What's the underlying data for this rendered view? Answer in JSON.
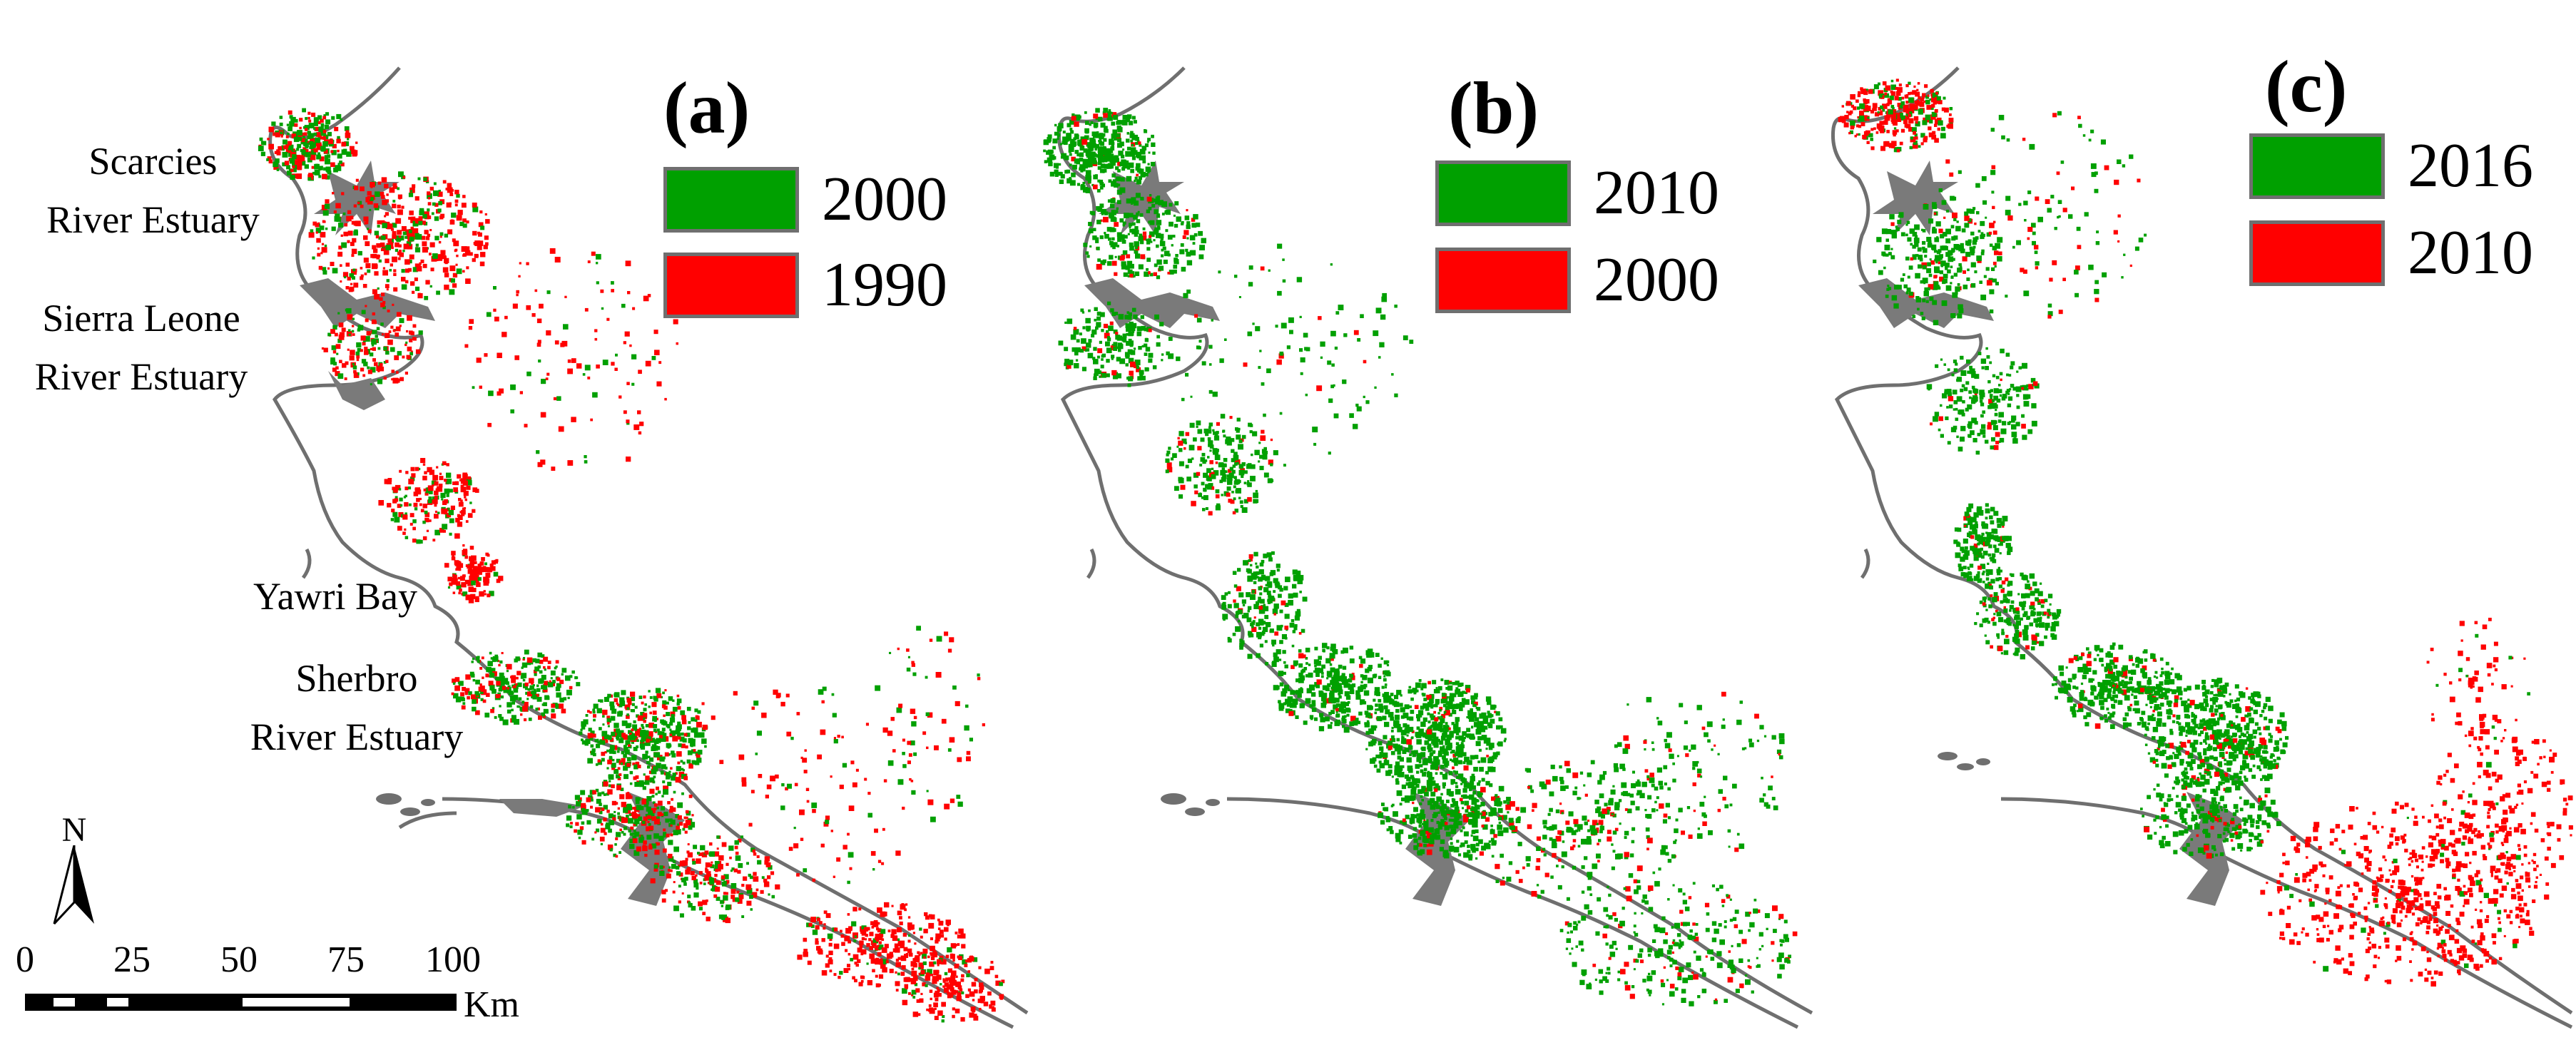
{
  "panels": [
    {
      "label": "(a)",
      "legend": [
        {
          "year": "2000",
          "color": "#00a000"
        },
        {
          "year": "1990",
          "color": "#ff0000"
        }
      ]
    },
    {
      "label": "(b)",
      "legend": [
        {
          "year": "2010",
          "color": "#00a000"
        },
        {
          "year": "2000",
          "color": "#ff0000"
        }
      ]
    },
    {
      "label": "(c)",
      "legend": [
        {
          "year": "2016",
          "color": "#00a000"
        },
        {
          "year": "2010",
          "color": "#ff0000"
        }
      ]
    }
  ],
  "places": {
    "scarcies_line1": "Scarcies",
    "scarcies_line2": "River Estuary",
    "sierra_line1": "Sierra Leone",
    "sierra_line2": "River Estuary",
    "yawri": "Yawri Bay",
    "sherbro_line1": "Sherbro",
    "sherbro_line2": "River Estuary"
  },
  "north_arrow": {
    "letter": "N",
    "icon": "north-arrow-icon"
  },
  "scale_bar": {
    "ticks": [
      "0",
      "25",
      "50",
      "75",
      "100"
    ],
    "unit": "Km"
  },
  "colors": {
    "green": "#00a000",
    "red": "#ff0000",
    "gray": "#6f6f6f"
  }
}
